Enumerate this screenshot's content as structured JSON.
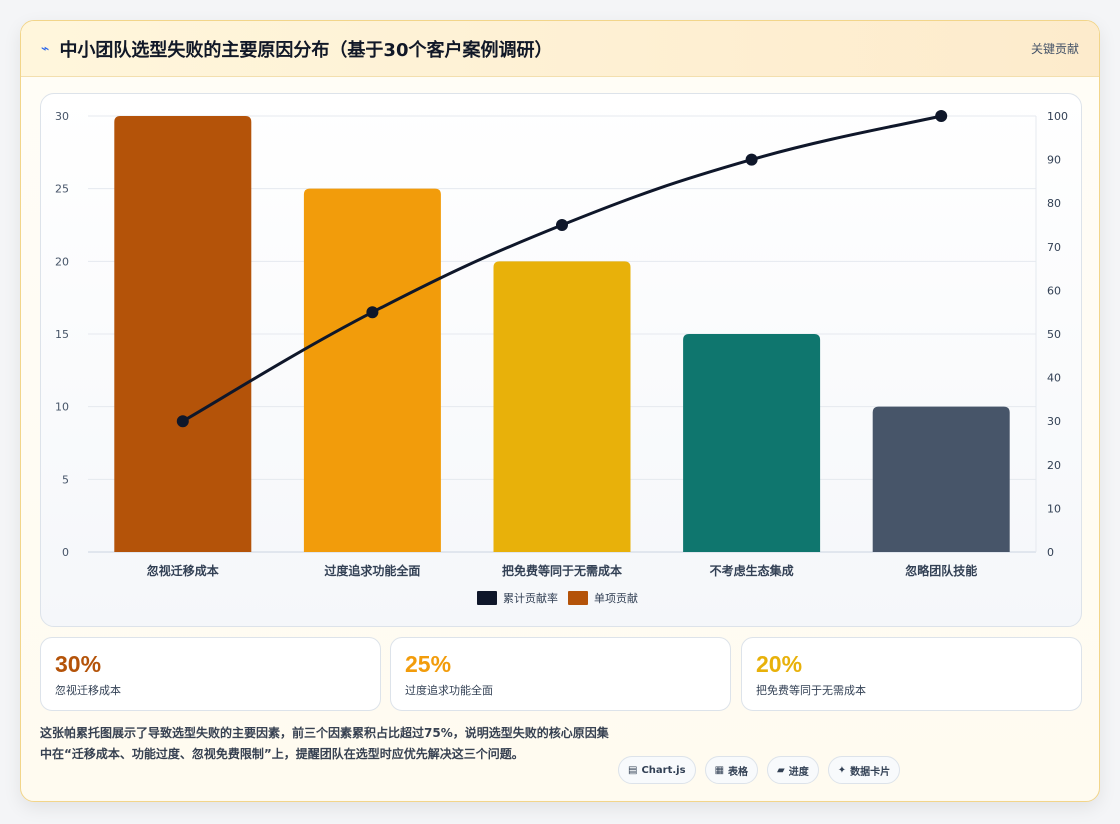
{
  "header": {
    "icon": "⌁",
    "title": "中小团队选型失败的主要原因分布（基于30个客户案例调研）",
    "badge": "关键贡献"
  },
  "chart_data": {
    "type": "bar",
    "categories": [
      "忽视迁移成本",
      "过度追求功能全面",
      "把免费等同于无需成本",
      "不考虑生态集成",
      "忽略团队技能"
    ],
    "series": [
      {
        "name": "单项贡献",
        "type": "bar",
        "axis": "left",
        "values": [
          30,
          25,
          20,
          15,
          10
        ],
        "colors": [
          "#b45309",
          "#f29c0b",
          "#e8b10a",
          "#0f766e",
          "#475569"
        ]
      },
      {
        "name": "累计贡献率",
        "type": "line",
        "axis": "right",
        "values": [
          30,
          55,
          75,
          90,
          100
        ],
        "color": "#0f172a"
      }
    ],
    "ylim_left": [
      0,
      30
    ],
    "yticks_left": [
      0,
      5,
      10,
      15,
      20,
      25,
      30
    ],
    "ylim_right": [
      0,
      100
    ],
    "yticks_right": [
      0,
      10,
      20,
      30,
      40,
      50,
      60,
      70,
      80,
      90,
      100
    ],
    "grid": true,
    "legend_position": "bottom",
    "legend": [
      {
        "label": "累计贡献率",
        "color": "#0f172a"
      },
      {
        "label": "单项贡献",
        "color": "#b45309"
      }
    ]
  },
  "stats": [
    {
      "value": "30%",
      "label": "忽视迁移成本",
      "color": "#b45309"
    },
    {
      "value": "25%",
      "label": "过度追求功能全面",
      "color": "#f29c0b"
    },
    {
      "value": "20%",
      "label": "把免费等同于无需成本",
      "color": "#e8b10a"
    }
  ],
  "footer": {
    "text": "这张帕累托图展示了导致选型失败的主要因素，前三个因素累积占比超过75%，说明选型失败的核心原因集中在“迁移成本、功能过度、忽视免费限制”上，提醒团队在选型时应优先解决这三个问题。",
    "tags": [
      {
        "icon": "▤",
        "label": "Chart.js",
        "icon_name": "chart-icon"
      },
      {
        "icon": "▦",
        "label": "表格",
        "icon_name": "table-icon"
      },
      {
        "icon": "▰",
        "label": "进度",
        "icon_name": "progress-icon"
      },
      {
        "icon": "✦",
        "label": "数据卡片",
        "icon_name": "sparkle-icon"
      }
    ]
  }
}
